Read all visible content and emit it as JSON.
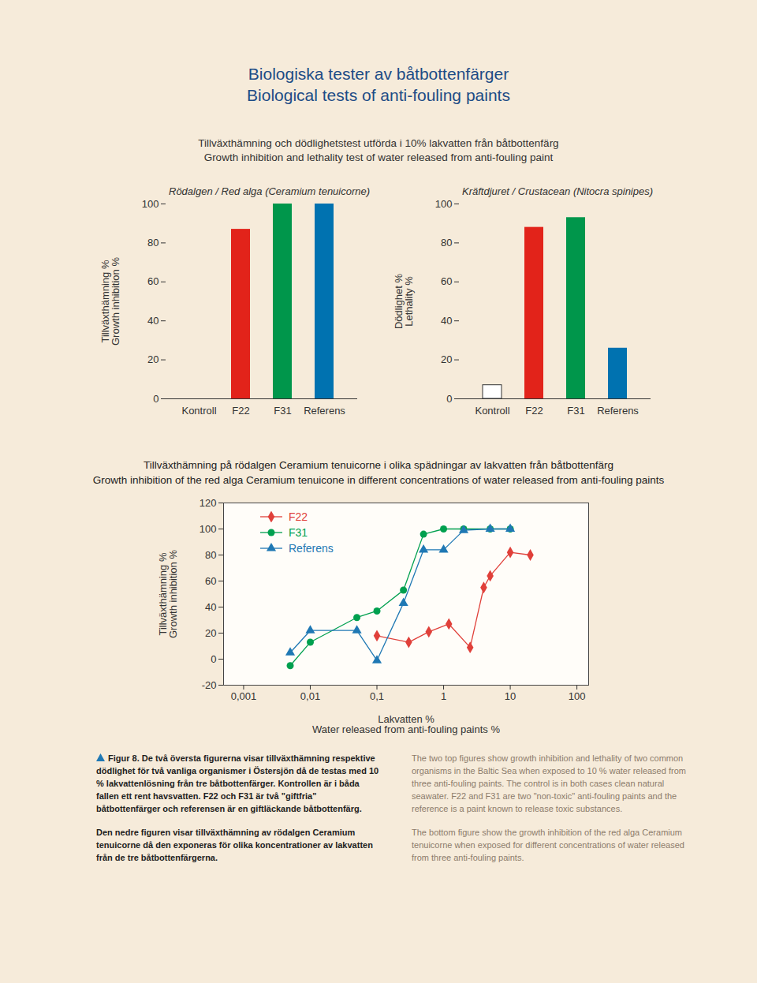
{
  "page": {
    "title": [
      "Biologiska tester av båtbottenfärger",
      "Biological tests of anti-fouling paints"
    ],
    "subtitle": [
      "Tillväxthämning och dödlighetstest utförda i 10% lakvatten från båtbottenfärg",
      "Growth inhibition and lethality test of water released from anti-fouling paint"
    ],
    "caption_sv": [
      "Figur 8. De två översta figurerna visar tillväxthämning respektive dödlighet för två vanliga organismer i Östersjön då de testas med 10 % lakvattenlösning från tre båtbottenfärger. Kontrollen är i båda fallen ett rent havsvatten. F22 och F31 är två \"giftfria\" båtbottenfärger och referensen är en giftläckande båtbottenfärg.",
      "Den nedre figuren visar tillväxthämning av rödalgen Ceramium tenuicorne då den exponeras för olika koncentrationer av lakvatten från de tre båtbottenfärgerna."
    ],
    "caption_en": [
      "The two top figures show growth inhibition and lethality of two common organisms in the Baltic Sea when exposed to 10 % water released from three anti-fouling paints. The control is in both cases clean natural seawater. F22 and F31 are two \"non-toxic\" anti-fouling paints and the reference is a paint known to release toxic substances.",
      "The bottom figure show the growth inhibition of the red alga Ceramium tenuicorne when exposed for different concentrations of water released from three anti-fouling paints."
    ]
  },
  "chart_data": [
    {
      "type": "bar",
      "title": "Rödalgen / Red alga (Ceramium tenuicorne)",
      "ylabel": "Tillväxthämning %\nGrowth inhibition %",
      "categories": [
        "Kontroll",
        "F22",
        "F31",
        "Referens"
      ],
      "values": [
        0,
        87,
        100,
        100
      ],
      "colors": [
        "#ffffff",
        "#e2231a",
        "#00964b",
        "#0072b0"
      ],
      "ylim": [
        0,
        100
      ],
      "yticks": [
        0,
        20,
        40,
        60,
        80,
        100
      ],
      "grid": false,
      "data_labels": false
    },
    {
      "type": "bar",
      "title": "Kräftdjuret / Crustacean (Nitocra spinipes)",
      "ylabel": "Dödlighet %\nLethality %",
      "categories": [
        "Kontroll",
        "F22",
        "F31",
        "Referens"
      ],
      "values": [
        7,
        88,
        93,
        26
      ],
      "colors": [
        "#ffffff",
        "#e2231a",
        "#00964b",
        "#0072b0"
      ],
      "ylim": [
        0,
        100
      ],
      "yticks": [
        0,
        20,
        40,
        60,
        80,
        100
      ],
      "grid": false,
      "data_labels": false
    },
    {
      "type": "line",
      "title": [
        "Tillväxthämning på rödalgen Ceramium tenuicorne i olika spädningar av lakvatten från båtbottenfärg",
        "Growth inhibition of the red alga Ceramium tenuicone in different concentrations of water released from anti-fouling paints"
      ],
      "xlabel": "Lakvatten %\nWater released from anti-fouling paints %",
      "ylabel": "Tillväxthämning %\nGrowth inhibition %",
      "log": "x",
      "grid": false,
      "legend": "top-left",
      "xlim": [
        0.0005,
        150
      ],
      "xticks": [
        {
          "value": 0.001,
          "label": "0,001"
        },
        {
          "value": 0.01,
          "label": "0,01"
        },
        {
          "value": 0.1,
          "label": "0,1"
        },
        1,
        10,
        100
      ],
      "ylim": [
        -20,
        120
      ],
      "yticks": [
        -20,
        0,
        20,
        40,
        60,
        80,
        100,
        120
      ],
      "series": [
        {
          "name": "F22",
          "color": "#e0403a",
          "marker": "diamond",
          "x": [
            0.1,
            0.3,
            0.6,
            1.2,
            2.5,
            4,
            5,
            10,
            20
          ],
          "values": [
            18,
            13,
            21,
            27,
            9,
            55,
            64,
            82,
            80
          ]
        },
        {
          "name": "F31",
          "color": "#00a04f",
          "marker": "circle",
          "x": [
            0.005,
            0.01,
            0.05,
            0.1,
            0.25,
            0.5,
            1,
            2,
            5,
            10
          ],
          "values": [
            -5,
            13,
            32,
            37,
            53,
            96,
            100,
            100,
            100,
            100
          ]
        },
        {
          "name": "Referens",
          "color": "#1f78b4",
          "marker": "triangle",
          "x": [
            0.005,
            0.01,
            0.05,
            0.1,
            0.25,
            0.5,
            1,
            2,
            5,
            10
          ],
          "values": [
            5,
            22,
            22,
            -1,
            43,
            84,
            84,
            99,
            100,
            100
          ]
        }
      ]
    }
  ]
}
